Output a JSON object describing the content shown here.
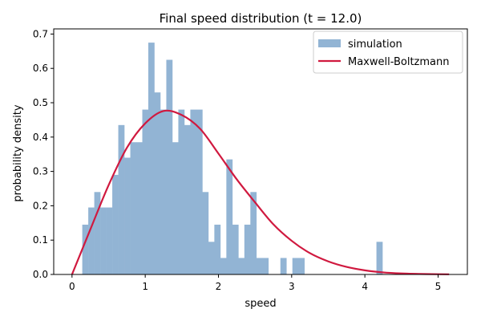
{
  "chart_data": {
    "type": "bar",
    "title": "Final speed distribution (t = 12.0)",
    "xlabel": "speed",
    "ylabel": "probability density",
    "xlim": [
      -0.25,
      5.4
    ],
    "ylim": [
      0,
      0.715
    ],
    "xticks": [
      0,
      1,
      2,
      3,
      4,
      5
    ],
    "xtick_labels": [
      "0",
      "1",
      "2",
      "3",
      "4",
      "5"
    ],
    "yticks": [
      0.0,
      0.1,
      0.2,
      0.3,
      0.4,
      0.5,
      0.6,
      0.7
    ],
    "ytick_labels": [
      "0.0",
      "0.1",
      "0.2",
      "0.3",
      "0.4",
      "0.5",
      "0.6",
      "0.7"
    ],
    "grid": false,
    "legend_position": "top-right",
    "series": [
      {
        "name": "simulation",
        "kind": "histogram",
        "color": "#92b4d4",
        "bin_edges": [
          0.14,
          0.222,
          0.304,
          0.386,
          0.468,
          0.55,
          0.632,
          0.714,
          0.796,
          0.878,
          0.96,
          1.042,
          1.124,
          1.206,
          1.288,
          1.37,
          1.452,
          1.534,
          1.616,
          1.698,
          1.78,
          1.862,
          1.944,
          2.026,
          2.108,
          2.19,
          2.272,
          2.354,
          2.436,
          2.518,
          2.6,
          2.682,
          2.764,
          2.846,
          2.928,
          3.01,
          3.092,
          3.174,
          3.256,
          3.338,
          3.42,
          3.502,
          3.584,
          3.666,
          3.748,
          3.83,
          3.912,
          3.994,
          4.076,
          4.158,
          4.24
        ],
        "values": [
          0.145,
          0.195,
          0.24,
          0.195,
          0.195,
          0.29,
          0.435,
          0.34,
          0.385,
          0.385,
          0.48,
          0.675,
          0.53,
          0.48,
          0.625,
          0.385,
          0.48,
          0.435,
          0.48,
          0.48,
          0.24,
          0.095,
          0.145,
          0.048,
          0.335,
          0.145,
          0.048,
          0.145,
          0.24,
          0.048,
          0.048,
          0,
          0,
          0.048,
          0,
          0.048,
          0.048,
          0,
          0,
          0,
          0,
          0,
          0,
          0,
          0,
          0,
          0,
          0,
          0,
          0.095
        ]
      },
      {
        "name": "Maxwell-Boltzmann",
        "kind": "line",
        "color": "#d0193f",
        "x": [
          0,
          0.25,
          0.5,
          0.75,
          1.0,
          1.25,
          1.5,
          1.75,
          2.0,
          2.25,
          2.5,
          2.75,
          3.0,
          3.25,
          3.5,
          3.75,
          4.0,
          4.25,
          4.5,
          4.75,
          5.0,
          5.15
        ],
        "y": [
          0,
          0.131,
          0.26,
          0.369,
          0.44,
          0.476,
          0.464,
          0.424,
          0.352,
          0.277,
          0.21,
          0.146,
          0.098,
          0.062,
          0.038,
          0.022,
          0.012,
          0.006,
          0.003,
          0.0015,
          0.0007,
          0.0004
        ]
      }
    ]
  }
}
